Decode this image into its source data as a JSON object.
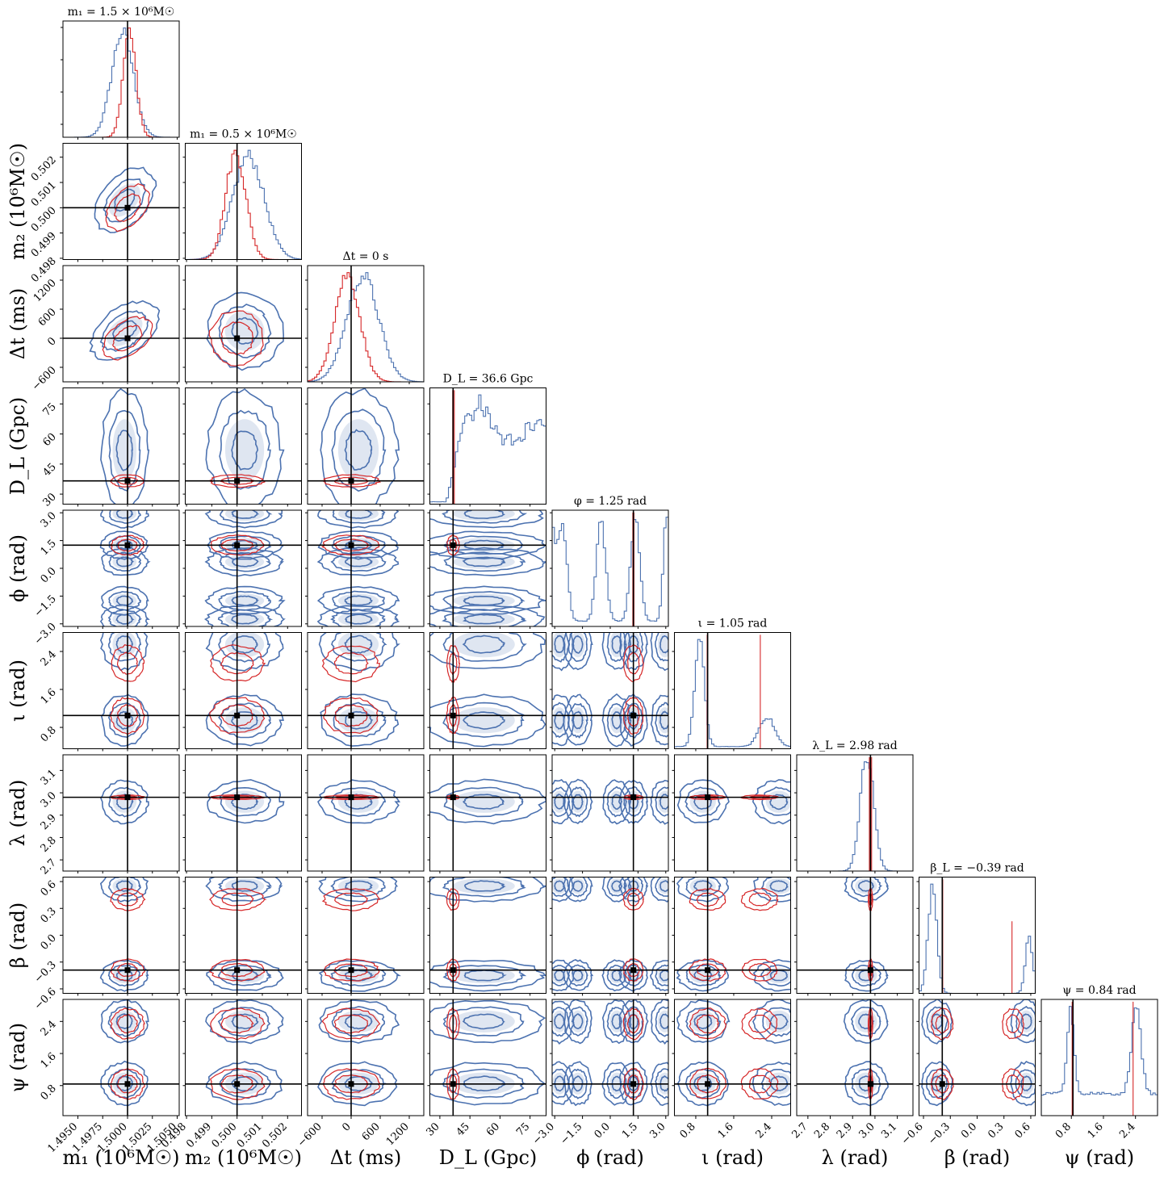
{
  "chart_data": {
    "type": "corner",
    "parameters": [
      {
        "key": "m1",
        "axis_label": "m₁ (10⁶M☉)",
        "title": "m₁ = 1.5 × 10⁶M☉",
        "truth": 1.5,
        "range": [
          1.4935,
          1.5052
        ],
        "ticks": [
          1.495,
          1.4975,
          1.5,
          1.5025,
          1.505
        ],
        "tick_labels": [
          "1.4950",
          "1.4975",
          "1.5000",
          "1.5025",
          "1.5050"
        ]
      },
      {
        "key": "m2",
        "axis_label": "m₂ (10⁶M☉)",
        "title": "m₁ = 0.5 × 10⁶M☉",
        "truth": 0.5,
        "range": [
          0.49795,
          0.50255
        ],
        "ticks": [
          0.498,
          0.499,
          0.5,
          0.501,
          0.502
        ],
        "tick_labels": [
          "0.498",
          "0.499",
          "0.500",
          "0.501",
          "0.502"
        ]
      },
      {
        "key": "dt",
        "axis_label": "Δt (ms)",
        "title": "Δt = 0 s",
        "truth": 0,
        "range": [
          -900,
          1500
        ],
        "ticks": [
          -600,
          0,
          600,
          1200
        ],
        "tick_labels": [
          "−600",
          "0",
          "600",
          "1200"
        ]
      },
      {
        "key": "DL",
        "axis_label": "D_L (Gpc)",
        "title": "D_L = 36.6 Gpc",
        "truth": 36.6,
        "range": [
          25,
          83
        ],
        "ticks": [
          30,
          45,
          60,
          75
        ],
        "tick_labels": [
          "30",
          "45",
          "60",
          "75"
        ]
      },
      {
        "key": "phi",
        "axis_label": "ϕ (rad)",
        "title": "φ = 1.25 rad",
        "truth": 1.25,
        "range": [
          -3.14,
          3.14
        ],
        "ticks": [
          -3,
          -1.5,
          0,
          1.5,
          3
        ],
        "tick_labels": [
          "−3.0",
          "−1.5",
          "0.0",
          "1.5",
          "3.0"
        ]
      },
      {
        "key": "iota",
        "axis_label": "ι (rad)",
        "title": "ι = 1.05 rad",
        "truth": 1.05,
        "range": [
          0.35,
          2.8
        ],
        "ticks": [
          0.8,
          1.6,
          2.4
        ],
        "tick_labels": [
          "0.8",
          "1.6",
          "2.4"
        ]
      },
      {
        "key": "lambda",
        "axis_label": "λ (rad)",
        "title": "λ_L = 2.98 rad",
        "truth": 2.98,
        "range": [
          2.65,
          3.17
        ],
        "ticks": [
          2.7,
          2.8,
          2.9,
          3.0,
          3.1
        ],
        "tick_labels": [
          "2.7",
          "2.8",
          "2.9",
          "3.0",
          "3.1"
        ]
      },
      {
        "key": "beta",
        "axis_label": "β (rad)",
        "title": "β_L = −0.39 rad",
        "truth": -0.39,
        "range": [
          -0.65,
          0.65
        ],
        "ticks": [
          -0.6,
          -0.3,
          0,
          0.3,
          0.6
        ],
        "tick_labels": [
          "−0.6",
          "−0.3",
          "0.0",
          "0.3",
          "0.6"
        ]
      },
      {
        "key": "psi",
        "axis_label": "ψ (rad)",
        "title": "ψ = 0.84 rad",
        "truth": 0.84,
        "range": [
          0.05,
          2.95
        ],
        "ticks": [
          0.8,
          1.6,
          2.4
        ],
        "tick_labels": [
          "0.8",
          "1.6",
          "2.4"
        ]
      }
    ],
    "y_tick_labels_override": {
      "phi": [
        "−3.0",
        "−1.5",
        "0.0",
        "1.5",
        "3.0"
      ],
      "iota": [
        "0.8",
        "1.6",
        "2.4"
      ]
    },
    "series": [
      {
        "name": "",
        "color": "#4c72b0"
      },
      {
        "name": "",
        "color": "#d62728"
      }
    ],
    "truth_color": "#000000",
    "grid": false,
    "legend": "none",
    "modes": {
      "phi": [
        -2.75,
        -1.75,
        0.35,
        1.25,
        2.95
      ],
      "iota_blue": [
        0.95,
        2.55
      ],
      "iota_red": [
        1.05,
        2.15
      ],
      "beta_blue": [
        -0.45,
        0.55
      ],
      "beta_red": [
        -0.39,
        0.4
      ],
      "psi_blue": [
        0.85,
        2.4
      ],
      "psi_red": [
        0.84,
        2.34
      ]
    }
  }
}
